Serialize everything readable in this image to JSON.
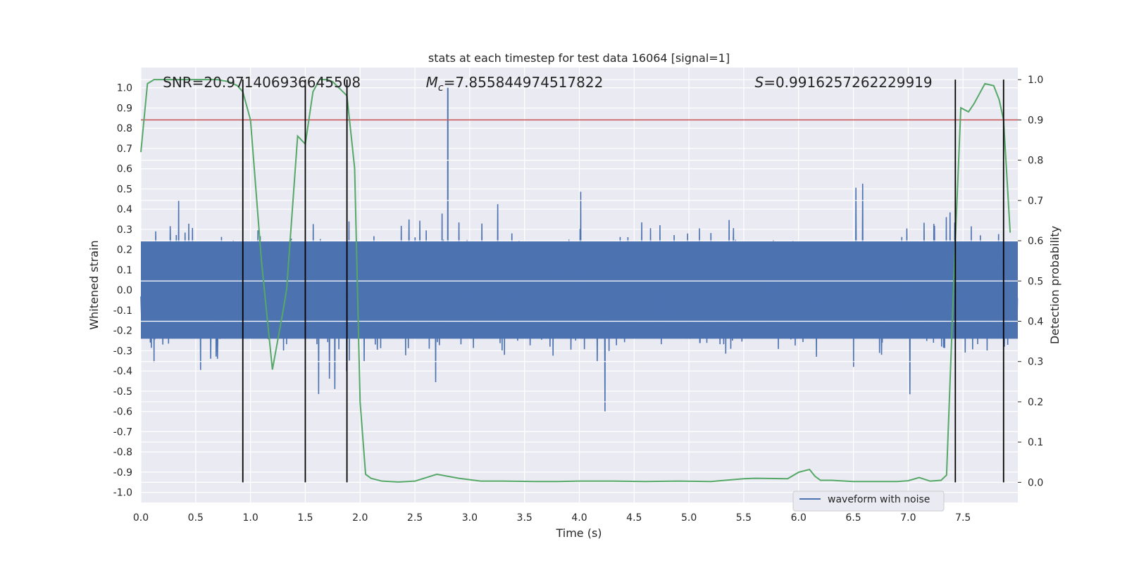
{
  "chart_data": {
    "type": "line",
    "title": "stats at each timestep for test data 16064 [signal=1]",
    "xlabel": "Time (s)",
    "ylabel_left": "Whitened strain",
    "ylabel_right": "Detection probability",
    "xlim": [
      0,
      8
    ],
    "ylim_left": [
      -1.05,
      1.1
    ],
    "ylim_right": [
      -0.05,
      1.03
    ],
    "x_ticks": [
      "0.0",
      "0.5",
      "1.0",
      "1.5",
      "2.0",
      "2.5",
      "3.0",
      "3.5",
      "4.0",
      "4.5",
      "5.0",
      "5.5",
      "6.0",
      "6.5",
      "7.0",
      "7.5"
    ],
    "y_ticks_left": [
      "1.0",
      "0.9",
      "0.8",
      "0.7",
      "0.6",
      "0.5",
      "0.4",
      "0.3",
      "0.2",
      "0.1",
      "0.0",
      "-0.1",
      "-0.2",
      "-0.3",
      "-0.4",
      "-0.5",
      "-0.6",
      "-0.7",
      "-0.8",
      "-0.9",
      "-1.0"
    ],
    "y_ticks_right": [
      "1.0",
      "0.9",
      "0.8",
      "0.7",
      "0.6",
      "0.5",
      "0.4",
      "0.3",
      "0.2",
      "0.1",
      "0.0"
    ],
    "grid": true,
    "legend_position": "bottom-right",
    "annotations": {
      "snr": {
        "text": "SNR=20.971406936645508",
        "x": 0.2
      },
      "mc": {
        "prefix": "M",
        "sub": "c",
        "text": "=7.855844974517822",
        "x": 2.6
      },
      "s": {
        "prefix": "S",
        "text": "=0.9916257262229919",
        "x": 5.6
      }
    },
    "threshold": {
      "value": 0.9,
      "axis": "right",
      "color": "#c44e52"
    },
    "vertical_lines": [
      0.93,
      1.5,
      1.88,
      7.43,
      7.87
    ],
    "vertical_line_range_right": [
      0.0,
      1.0
    ],
    "series": [
      {
        "name": "waveform with noise",
        "axis": "left",
        "color": "#4c72b0",
        "kind": "noise",
        "envelope": 0.37,
        "peak_value": 1.0,
        "peak_x": 2.8
      },
      {
        "axis": "right",
        "color": "#55a868",
        "x": [
          0.0,
          0.06,
          0.12,
          0.3,
          0.5,
          0.7,
          0.8,
          0.88,
          0.93,
          1.0,
          1.1,
          1.2,
          1.3,
          1.33,
          1.43,
          1.5,
          1.57,
          1.63,
          1.7,
          1.75,
          1.88,
          1.95,
          2.0,
          2.05,
          2.1,
          2.2,
          2.35,
          2.5,
          2.7,
          2.9,
          3.1,
          3.3,
          3.6,
          3.8,
          4.0,
          4.3,
          4.6,
          4.9,
          5.2,
          5.5,
          5.6,
          5.9,
          6.0,
          6.1,
          6.15,
          6.2,
          6.3,
          6.5,
          6.9,
          7.0,
          7.1,
          7.2,
          7.3,
          7.35,
          7.43,
          7.48,
          7.55,
          7.6,
          7.65,
          7.7,
          7.78,
          7.83,
          7.87,
          7.93
        ],
        "values": [
          0.82,
          0.99,
          1.0,
          1.0,
          1.0,
          1.0,
          0.995,
          0.985,
          0.97,
          0.9,
          0.55,
          0.28,
          0.43,
          0.48,
          0.86,
          0.84,
          0.97,
          1.0,
          1.0,
          0.995,
          0.96,
          0.78,
          0.2,
          0.02,
          0.01,
          0.003,
          0.001,
          0.003,
          0.02,
          0.01,
          0.003,
          0.003,
          0.002,
          0.002,
          0.003,
          0.003,
          0.002,
          0.003,
          0.002,
          0.009,
          0.01,
          0.009,
          0.025,
          0.032,
          0.015,
          0.005,
          0.005,
          0.002,
          0.002,
          0.004,
          0.012,
          0.003,
          0.005,
          0.018,
          0.6,
          0.93,
          0.92,
          0.94,
          0.965,
          0.99,
          0.985,
          0.95,
          0.9,
          0.62
        ]
      }
    ]
  }
}
